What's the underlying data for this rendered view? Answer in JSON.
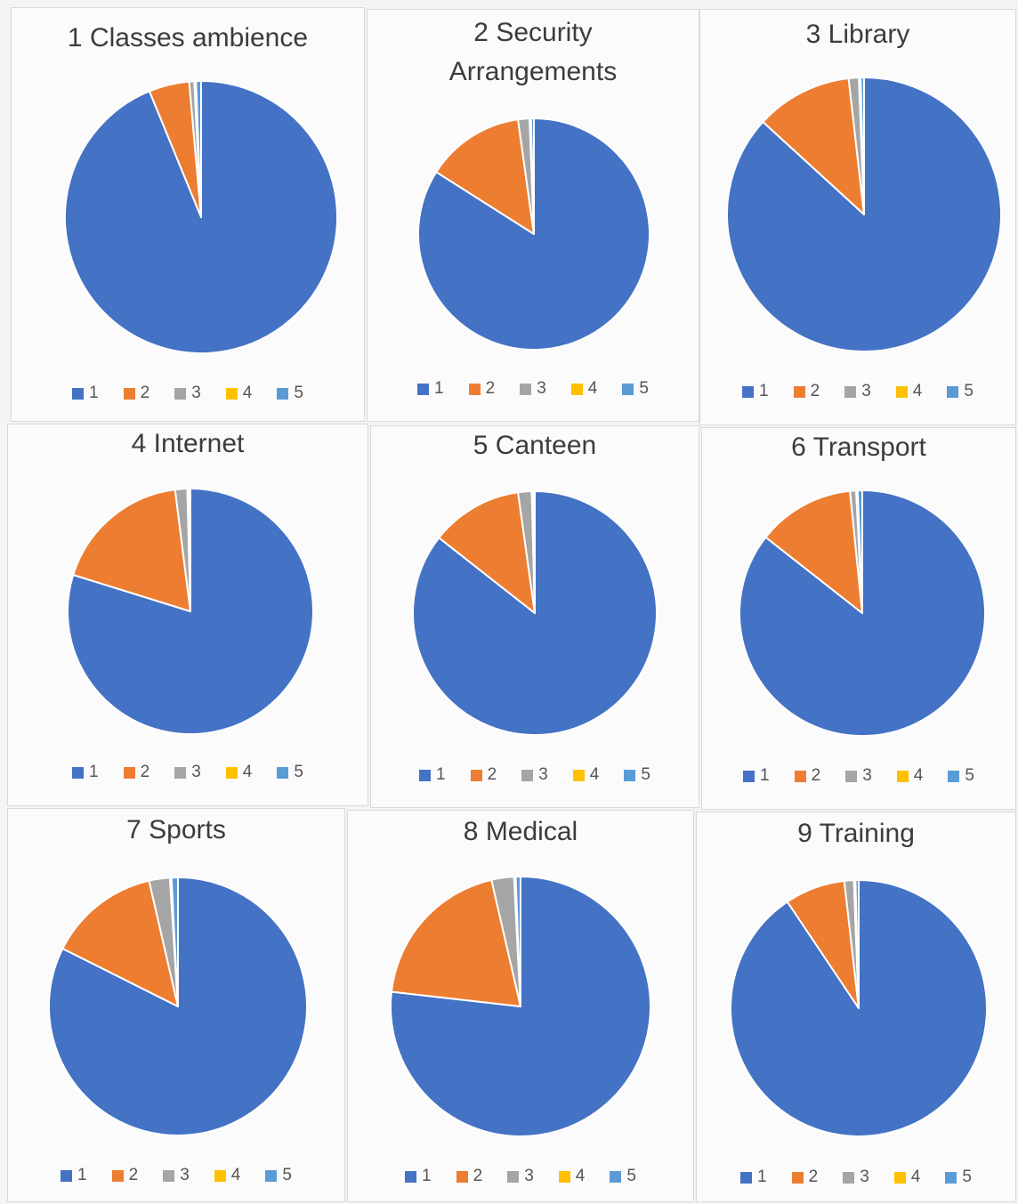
{
  "colors": {
    "1": "#4472c4",
    "2": "#ed7d31",
    "3": "#a5a5a5",
    "4": "#ffc000",
    "5": "#5b9bd5"
  },
  "chart_data": [
    {
      "type": "pie",
      "title": "1 Classes ambience",
      "categories": [
        "1",
        "2",
        "3",
        "4",
        "5"
      ],
      "values": [
        93.8,
        4.8,
        0.6,
        0.2,
        0.6
      ]
    },
    {
      "type": "pie",
      "title": "2 Security Arrangements",
      "categories": [
        "1",
        "2",
        "3",
        "4",
        "5"
      ],
      "values": [
        84.0,
        13.8,
        1.6,
        0.2,
        0.4
      ]
    },
    {
      "type": "pie",
      "title": "3 Library",
      "categories": [
        "1",
        "2",
        "3",
        "4",
        "5"
      ],
      "values": [
        86.8,
        11.4,
        1.2,
        0.2,
        0.4
      ]
    },
    {
      "type": "pie",
      "title": "4 Internet",
      "categories": [
        "1",
        "2",
        "3",
        "4",
        "5"
      ],
      "values": [
        79.8,
        18.2,
        1.6,
        0.2,
        0.2
      ]
    },
    {
      "type": "pie",
      "title": "5 Canteen",
      "categories": [
        "1",
        "2",
        "3",
        "4",
        "5"
      ],
      "values": [
        85.6,
        12.2,
        1.8,
        0.2,
        0.2
      ]
    },
    {
      "type": "pie",
      "title": "6 Transport",
      "categories": [
        "1",
        "2",
        "3",
        "4",
        "5"
      ],
      "values": [
        85.6,
        12.8,
        0.8,
        0.2,
        0.6
      ]
    },
    {
      "type": "pie",
      "title": "7 Sports",
      "categories": [
        "1",
        "2",
        "3",
        "4",
        "5"
      ],
      "values": [
        82.4,
        14.0,
        2.6,
        0.2,
        0.8
      ]
    },
    {
      "type": "pie",
      "title": "8 Medical",
      "categories": [
        "1",
        "2",
        "3",
        "4",
        "5"
      ],
      "values": [
        76.8,
        19.6,
        2.8,
        0.2,
        0.6
      ]
    },
    {
      "type": "pie",
      "title": "9 Training",
      "categories": [
        "1",
        "2",
        "3",
        "4",
        "5"
      ],
      "values": [
        90.6,
        7.6,
        1.2,
        0.2,
        0.4
      ]
    }
  ]
}
